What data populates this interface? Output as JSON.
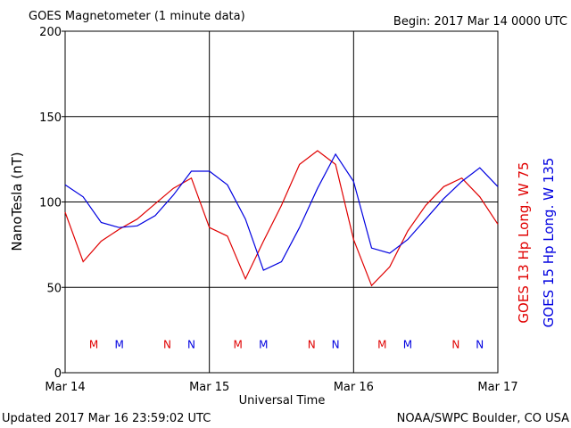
{
  "chart_data": {
    "type": "line",
    "title": "GOES Magnetometer (1 minute data)",
    "subtitle": "Begin:  2017 Mar 14 0000 UTC",
    "x_label": "Universal Time",
    "y_label": "NanoTesla (nT)",
    "footer_left": "Updated 2017 Mar 16 23:59:02 UTC",
    "footer_right": "NOAA/SWPC Boulder, CO USA",
    "x": [
      "2017-03-14 00:00",
      "2017-03-14 03:00",
      "2017-03-14 06:00",
      "2017-03-14 09:00",
      "2017-03-14 12:00",
      "2017-03-14 15:00",
      "2017-03-14 18:00",
      "2017-03-14 21:00",
      "2017-03-15 00:00",
      "2017-03-15 03:00",
      "2017-03-15 06:00",
      "2017-03-15 09:00",
      "2017-03-15 12:00",
      "2017-03-15 15:00",
      "2017-03-15 18:00",
      "2017-03-15 21:00",
      "2017-03-16 00:00",
      "2017-03-16 03:00",
      "2017-03-16 06:00",
      "2017-03-16 09:00",
      "2017-03-16 12:00",
      "2017-03-16 15:00",
      "2017-03-16 18:00",
      "2017-03-16 21:00",
      "2017-03-17 00:00"
    ],
    "series": [
      {
        "name": "GOES 13 Hp  Long. W 75",
        "color": "#e00000",
        "values": [
          94,
          65,
          77,
          84,
          90,
          99,
          108,
          114,
          85,
          80,
          55,
          77,
          98,
          122,
          130,
          122,
          78,
          51,
          62,
          83,
          98,
          109,
          114,
          103,
          87
        ]
      },
      {
        "name": "GOES 15 Hp  Long. W 135",
        "color": "#0000e0",
        "values": [
          110,
          103,
          88,
          85,
          86,
          92,
          104,
          118,
          118,
          110,
          90,
          60,
          65,
          85,
          108,
          128,
          112,
          73,
          70,
          78,
          90,
          102,
          112,
          120,
          109
        ]
      }
    ],
    "annotations": [
      {
        "text": "M",
        "x": "2017-03-14 04:45",
        "y": 17,
        "color": "#e00000"
      },
      {
        "text": "M",
        "x": "2017-03-14 09:00",
        "y": 17,
        "color": "#0000e0"
      },
      {
        "text": "N",
        "x": "2017-03-14 17:00",
        "y": 17,
        "color": "#e00000"
      },
      {
        "text": "N",
        "x": "2017-03-14 21:00",
        "y": 17,
        "color": "#0000e0"
      },
      {
        "text": "M",
        "x": "2017-03-15 04:45",
        "y": 17,
        "color": "#e00000"
      },
      {
        "text": "M",
        "x": "2017-03-15 09:00",
        "y": 17,
        "color": "#0000e0"
      },
      {
        "text": "N",
        "x": "2017-03-15 17:00",
        "y": 17,
        "color": "#e00000"
      },
      {
        "text": "N",
        "x": "2017-03-15 21:00",
        "y": 17,
        "color": "#0000e0"
      },
      {
        "text": "M",
        "x": "2017-03-16 04:45",
        "y": 17,
        "color": "#e00000"
      },
      {
        "text": "M",
        "x": "2017-03-16 09:00",
        "y": 17,
        "color": "#0000e0"
      },
      {
        "text": "N",
        "x": "2017-03-16 17:00",
        "y": 17,
        "color": "#e00000"
      },
      {
        "text": "N",
        "x": "2017-03-16 21:00",
        "y": 17,
        "color": "#0000e0"
      }
    ],
    "xlim": [
      "2017-03-14 00:00",
      "2017-03-17 00:00"
    ],
    "xticks": [
      {
        "value": "2017-03-14 00:00",
        "label": "Mar 14"
      },
      {
        "value": "2017-03-15 00:00",
        "label": "Mar 15"
      },
      {
        "value": "2017-03-16 00:00",
        "label": "Mar 16"
      },
      {
        "value": "2017-03-17 00:00",
        "label": "Mar 17"
      }
    ],
    "ylim": [
      0,
      200
    ],
    "yticks": [
      0,
      50,
      100,
      150,
      200
    ],
    "grid": true
  }
}
